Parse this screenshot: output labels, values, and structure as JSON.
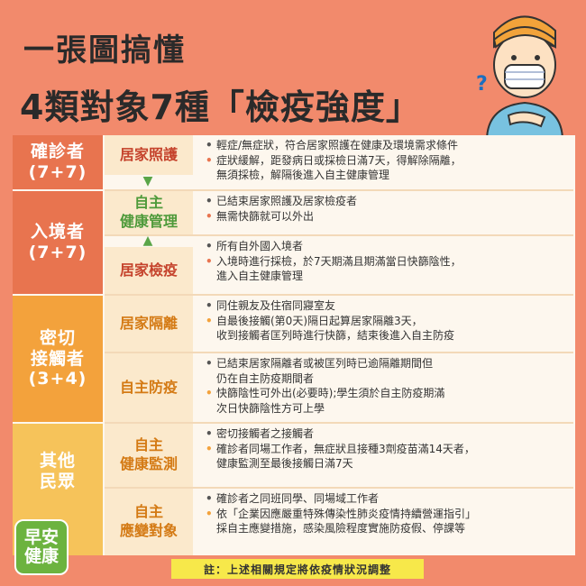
{
  "header": {
    "title_line1": "一張圖搞懂",
    "title_line2": "4類對象7種「檢疫強度」"
  },
  "categories": [
    {
      "line1": "確診者",
      "line2": "(7+7)"
    },
    {
      "line1": "入境者",
      "line2": "(7+7)"
    },
    {
      "line1": "密切",
      "line2": "接觸者",
      "line3": "(3+4)"
    },
    {
      "line1": "其他",
      "line2": "民眾"
    }
  ],
  "rows": [
    {
      "label1": "居家照護",
      "bullets": [
        "輕症/無症狀，符合居家照護在健康及環境需求條件",
        "症狀緩解，距發病日或採檢日滿7天，得解除隔離，",
        "無須採檢，解隔後進入自主健康管理"
      ]
    },
    {
      "label1": "自主",
      "label2": "健康管理",
      "bullets": [
        "已結束居家照護及居家檢疫者",
        "無需快篩就可以外出"
      ]
    },
    {
      "label1": "居家檢疫",
      "bullets": [
        "所有自外國入境者",
        "入境時進行採檢，於7天期滿且期滿當日快篩陰性，",
        "進入自主健康管理"
      ]
    },
    {
      "label1": "居家隔離",
      "bullets": [
        "同住親友及住宿同寢室友",
        "自最後接觸(第0天)隔日起算居家隔離3天，",
        "收到接觸者匡列時進行快篩，結束後進入自主防疫"
      ]
    },
    {
      "label1": "自主防疫",
      "bullets": [
        "已結束居家隔離者或被匡列時已逾隔離期間但",
        "仍在自主防疫期間者",
        "快篩陰性可外出(必要時);學生須於自主防疫期滿",
        "次日快篩陰性方可上學"
      ]
    },
    {
      "label1": "自主",
      "label2": "健康監測",
      "bullets": [
        "密切接觸者之接觸者",
        "確診者同場工作者，無症狀且接種3劑疫苗滿14天者，",
        "健康監測至最後接觸日滿7天"
      ]
    },
    {
      "label1": "自主",
      "label2": "應變對象",
      "bullets": [
        "確診者之同班同學、同場域工作者",
        "依「企業因應嚴重特殊傳染性肺炎疫情持續營運指引」",
        "採自主應變措施，感染風險程度實施防疫假、停課等"
      ]
    }
  ],
  "footer": {
    "note": "註：上述相關規定將依疫情狀況調整"
  },
  "logo": {
    "line1": "早安",
    "line2": "健康"
  },
  "colors": {
    "background": "#f28a6c",
    "confirmed": "#e8744f",
    "arrival": "#e8744f",
    "contact": "#f3a23c",
    "others": "#f6c35a",
    "logo": "#6cb33f",
    "note": "#f7e84a"
  }
}
